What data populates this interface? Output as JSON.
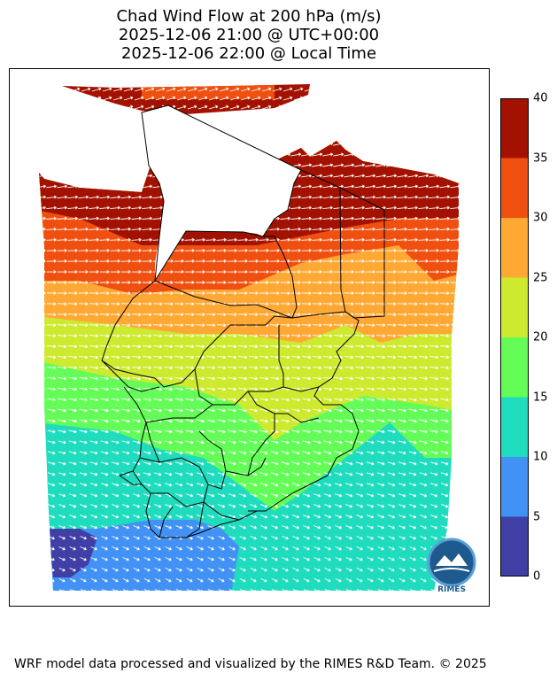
{
  "title": {
    "line1": "Chad Wind Flow at 200 hPa (m/s)",
    "line2": "2025-12-06 21:00 @ UTC+00:00",
    "line3": "2025-12-06 22:00 @ Local Time"
  },
  "colorbar": {
    "ticks": [
      "0",
      "5",
      "10",
      "15",
      "20",
      "25",
      "30",
      "35",
      "40"
    ],
    "colors": [
      "#3f3fa5",
      "#4292f5",
      "#1fdcbf",
      "#64fd58",
      "#cdea2f",
      "#ffa834",
      "#ef5010",
      "#a31201"
    ]
  },
  "logo": {
    "text": "RIMES"
  },
  "footer": "WRF model data processed and visualized by the RIMES R&D Team. © 2025"
}
